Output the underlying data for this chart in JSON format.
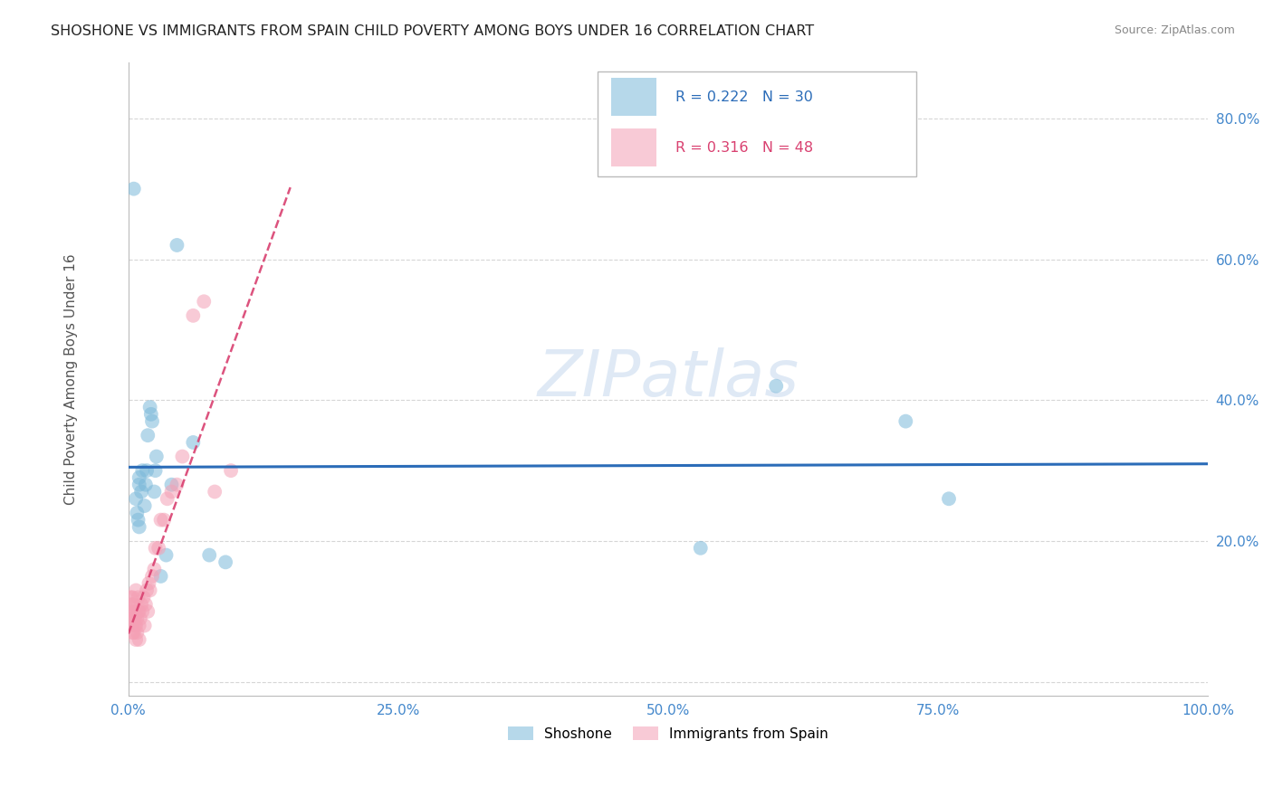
{
  "title": "SHOSHONE VS IMMIGRANTS FROM SPAIN CHILD POVERTY AMONG BOYS UNDER 16 CORRELATION CHART",
  "source": "Source: ZipAtlas.com",
  "ylabel": "Child Poverty Among Boys Under 16",
  "shoshone_R": "0.222",
  "shoshone_N": "30",
  "spain_R": "0.316",
  "spain_N": "48",
  "shoshone_color": "#7ab8d9",
  "spain_color": "#f4a0b5",
  "shoshone_line_color": "#2b6cb8",
  "spain_line_color": "#d94070",
  "background_color": "#ffffff",
  "grid_color": "#cccccc",
  "title_color": "#222222",
  "tick_color": "#4488cc",
  "xlim": [
    0.0,
    1.0
  ],
  "ylim": [
    -0.02,
    0.88
  ],
  "shoshone_x": [
    0.005,
    0.007,
    0.008,
    0.009,
    0.01,
    0.01,
    0.01,
    0.012,
    0.013,
    0.015,
    0.016,
    0.017,
    0.018,
    0.02,
    0.021,
    0.022,
    0.024,
    0.025,
    0.026,
    0.03,
    0.035,
    0.04,
    0.045,
    0.06,
    0.075,
    0.09,
    0.53,
    0.6,
    0.72,
    0.76
  ],
  "shoshone_y": [
    0.7,
    0.26,
    0.24,
    0.23,
    0.22,
    0.28,
    0.29,
    0.27,
    0.3,
    0.25,
    0.28,
    0.3,
    0.35,
    0.39,
    0.38,
    0.37,
    0.27,
    0.3,
    0.32,
    0.15,
    0.18,
    0.28,
    0.62,
    0.34,
    0.18,
    0.17,
    0.19,
    0.42,
    0.37,
    0.26
  ],
  "spain_x": [
    0.002,
    0.002,
    0.003,
    0.003,
    0.003,
    0.004,
    0.004,
    0.004,
    0.005,
    0.005,
    0.005,
    0.006,
    0.006,
    0.006,
    0.007,
    0.007,
    0.007,
    0.008,
    0.008,
    0.009,
    0.009,
    0.01,
    0.01,
    0.01,
    0.011,
    0.012,
    0.013,
    0.014,
    0.015,
    0.016,
    0.017,
    0.018,
    0.019,
    0.02,
    0.022,
    0.024,
    0.025,
    0.028,
    0.03,
    0.033,
    0.036,
    0.04,
    0.045,
    0.05,
    0.06,
    0.07,
    0.08,
    0.095
  ],
  "spain_y": [
    0.1,
    0.12,
    0.08,
    0.09,
    0.11,
    0.07,
    0.1,
    0.12,
    0.07,
    0.09,
    0.11,
    0.08,
    0.09,
    0.1,
    0.06,
    0.08,
    0.13,
    0.07,
    0.09,
    0.1,
    0.12,
    0.06,
    0.08,
    0.1,
    0.09,
    0.11,
    0.1,
    0.12,
    0.08,
    0.11,
    0.13,
    0.1,
    0.14,
    0.13,
    0.15,
    0.16,
    0.19,
    0.19,
    0.23,
    0.23,
    0.26,
    0.27,
    0.28,
    0.32,
    0.52,
    0.54,
    0.27,
    0.3
  ],
  "yticks": [
    0.0,
    0.2,
    0.4,
    0.6,
    0.8
  ],
  "ytick_labels": [
    "",
    "20.0%",
    "40.0%",
    "60.0%",
    "80.0%"
  ],
  "xticks": [
    0.0,
    0.25,
    0.5,
    0.75,
    1.0
  ],
  "xtick_labels": [
    "0.0%",
    "25.0%",
    "50.0%",
    "75.0%",
    "100.0%"
  ],
  "legend_items": [
    {
      "label": "R = 0.222   N = 30",
      "color": "#7ab8d9",
      "text_color": "#2b6cb8"
    },
    {
      "label": "R = 0.316   N = 48",
      "color": "#f4a0b5",
      "text_color": "#d94070"
    }
  ]
}
